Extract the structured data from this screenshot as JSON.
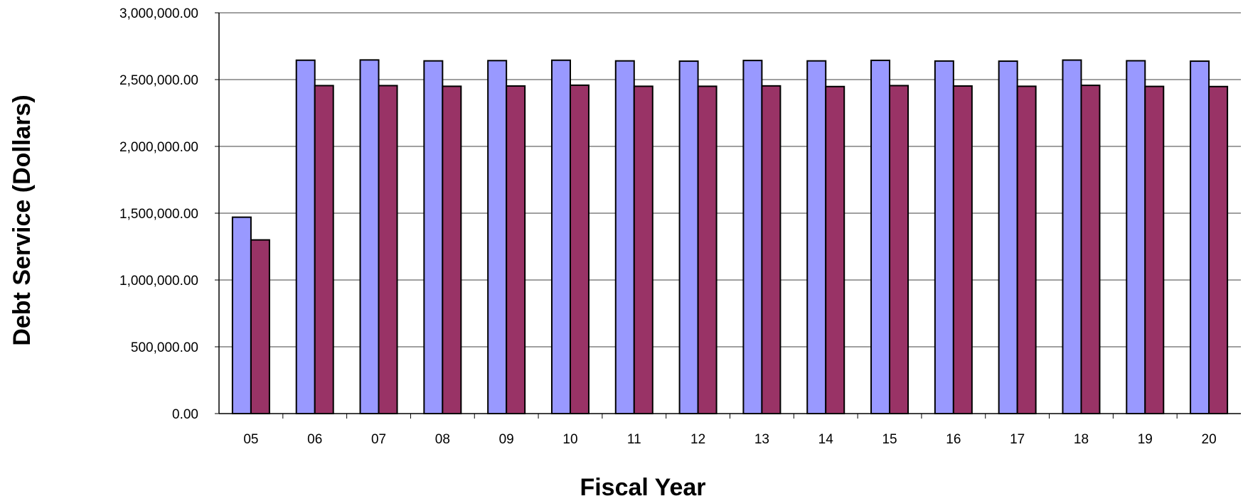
{
  "chart_data": {
    "type": "bar",
    "title": "",
    "xlabel": "Fiscal Year",
    "ylabel": "Debt Service (Dollars)",
    "ylim": [
      0,
      3000000
    ],
    "yticks": [
      "0.00",
      "500,000.00",
      "1,000,000.00",
      "1,500,000.00",
      "2,000,000.00",
      "2,500,000.00",
      "3,000,000.00"
    ],
    "ytick_values": [
      0,
      500000,
      1000000,
      1500000,
      2000000,
      2500000,
      3000000
    ],
    "categories": [
      "05",
      "06",
      "07",
      "08",
      "09",
      "10",
      "11",
      "12",
      "13",
      "14",
      "15",
      "16",
      "17",
      "18",
      "19",
      "20"
    ],
    "grid": "horizontal",
    "legend": "none",
    "series": [
      {
        "color": "#9999ff",
        "values": [
          1470000,
          2645000,
          2647000,
          2640000,
          2642000,
          2645000,
          2640000,
          2638000,
          2643000,
          2640000,
          2644000,
          2639000,
          2638000,
          2646000,
          2641000,
          2638000
        ]
      },
      {
        "color": "#993366",
        "values": [
          1300000,
          2455000,
          2455000,
          2450000,
          2452000,
          2458000,
          2450000,
          2450000,
          2453000,
          2448000,
          2455000,
          2452000,
          2450000,
          2457000,
          2449000,
          2448000
        ]
      }
    ]
  }
}
